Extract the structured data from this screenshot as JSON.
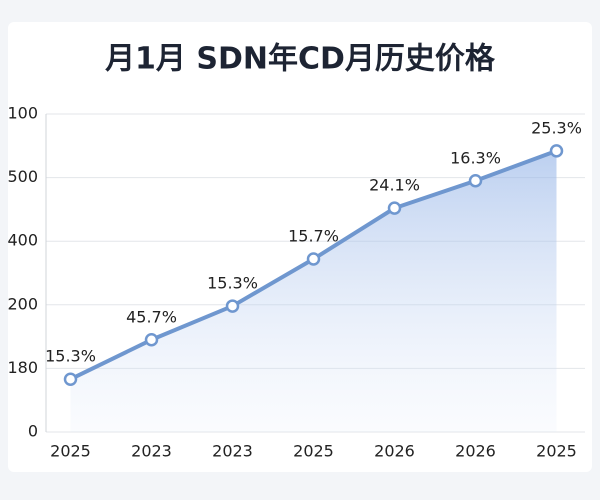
{
  "chart_data": {
    "type": "line",
    "title": "月1月  SDN年CD月历史价格",
    "categories": [
      "2025",
      "2023",
      "2023",
      "2025",
      "2026",
      "2026",
      "2025"
    ],
    "values": [
      0.83,
      1.45,
      1.98,
      2.72,
      3.52,
      3.95,
      4.42
    ],
    "point_labels": [
      "15.3%",
      "45.7%",
      "15.3%",
      "15.7%",
      "24.1%",
      "16.3%",
      "25.3%"
    ],
    "color": "#6f97cf",
    "ylim": [
      0,
      5
    ],
    "yticks": [
      {
        "value": 0,
        "label": "0"
      },
      {
        "value": 1,
        "label": "180"
      },
      {
        "value": 2,
        "label": "200"
      },
      {
        "value": 3,
        "label": "400"
      },
      {
        "value": 4,
        "label": "500"
      },
      {
        "value": 5,
        "label": "100"
      }
    ],
    "grid": true
  }
}
